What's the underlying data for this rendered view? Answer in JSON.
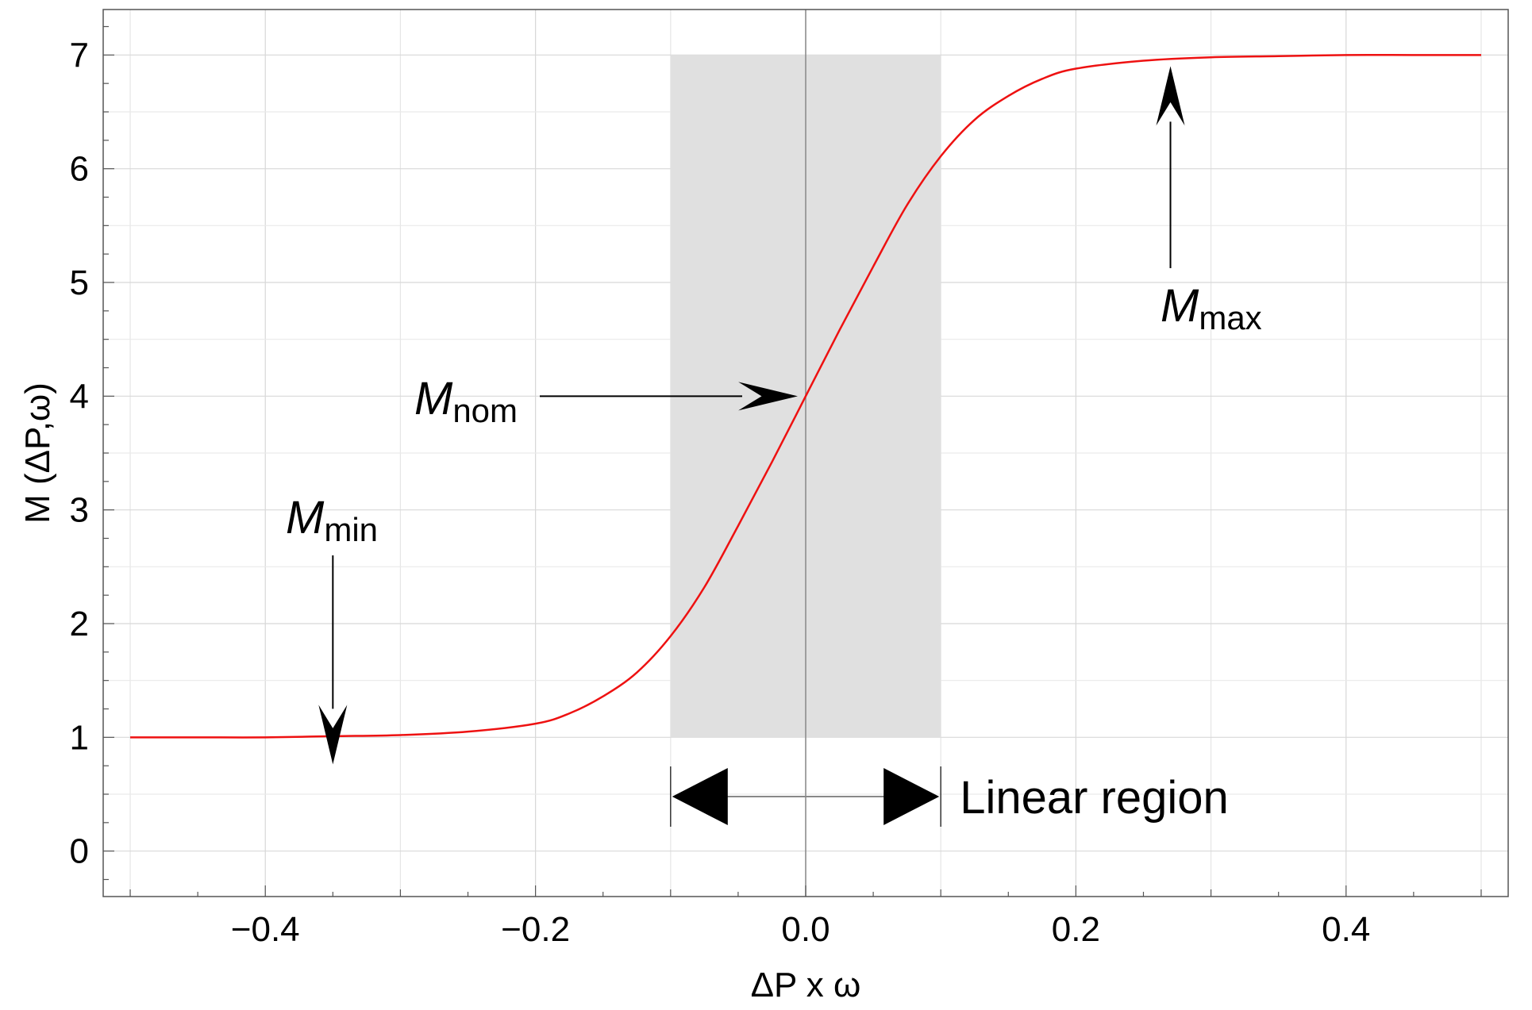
{
  "chart_data": {
    "type": "line",
    "title": "",
    "xlabel": "ΔP x ω",
    "ylabel": "M (ΔP,ω)",
    "xlim": [
      -0.52,
      0.52
    ],
    "ylim": [
      -0.4,
      7.4
    ],
    "x_ticks": [
      -0.4,
      -0.2,
      0.0,
      0.2,
      0.4
    ],
    "x_tick_labels": [
      "−0.4",
      "−0.2",
      "0.0",
      "0.2",
      "0.4"
    ],
    "y_ticks": [
      0,
      1,
      2,
      3,
      4,
      5,
      6,
      7
    ],
    "y_tick_labels": [
      "0",
      "1",
      "2",
      "3",
      "4",
      "5",
      "6",
      "7"
    ],
    "grid": true,
    "series": [
      {
        "color": "#ee1111",
        "x": [
          -0.5,
          -0.45,
          -0.4,
          -0.35,
          -0.3,
          -0.25,
          -0.2,
          -0.175,
          -0.15,
          -0.125,
          -0.1,
          -0.075,
          -0.05,
          -0.025,
          0.0,
          0.025,
          0.05,
          0.075,
          0.1,
          0.125,
          0.15,
          0.175,
          0.2,
          0.25,
          0.3,
          0.35,
          0.4,
          0.45,
          0.5
        ],
        "y": [
          1.0,
          1.0,
          1.0,
          1.01,
          1.02,
          1.05,
          1.12,
          1.21,
          1.36,
          1.57,
          1.89,
          2.32,
          2.86,
          3.42,
          4.0,
          4.58,
          5.14,
          5.68,
          6.11,
          6.43,
          6.64,
          6.79,
          6.88,
          6.95,
          6.98,
          6.99,
          7.0,
          7.0,
          7.0
        ]
      }
    ],
    "shaded_region": {
      "x": [
        -0.1,
        0.1
      ],
      "y": [
        1,
        7
      ],
      "color": "#e0e0e0"
    },
    "annotations": [
      {
        "main": "M",
        "sub": "min",
        "points_to": [
          -0.35,
          1.0
        ]
      },
      {
        "main": "M",
        "sub": "nom",
        "points_to": [
          0.0,
          4.0
        ]
      },
      {
        "main": "M",
        "sub": "max",
        "points_to": [
          0.27,
          7.0
        ]
      }
    ],
    "region_label": "Linear region"
  }
}
